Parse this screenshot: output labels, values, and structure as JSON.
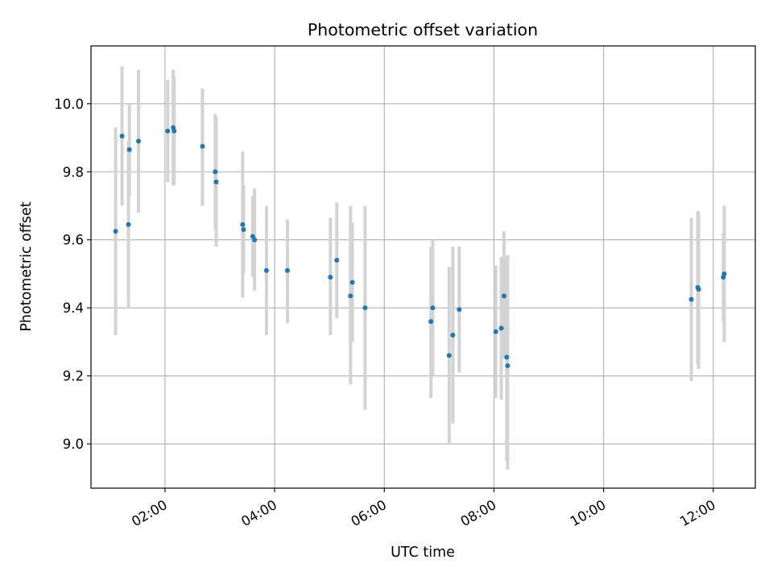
{
  "chart_data": {
    "type": "scatter",
    "title": "Photometric offset variation",
    "xlabel": "UTC time",
    "ylabel": "Photometric offset",
    "x_tick_labels": [
      "02:00",
      "04:00",
      "06:00",
      "08:00",
      "10:00",
      "12:00"
    ],
    "y_tick_labels": [
      "9.0",
      "9.2",
      "9.4",
      "9.6",
      "9.8",
      "10.0"
    ],
    "x_ticks": [
      "02:00",
      "04:00",
      "06:00",
      "08:00",
      "10:00",
      "12:00"
    ],
    "y_ticks": [
      9.0,
      9.2,
      9.4,
      9.6,
      9.8,
      10.0
    ],
    "xlim": [
      "00:39",
      "12:46"
    ],
    "ylim": [
      8.87,
      10.17
    ],
    "grid": true,
    "colors": {
      "points": "#1f77b4",
      "errorbars": "#d3d3d3",
      "grid": "#b0b0b0"
    },
    "points": [
      {
        "time": "01:06",
        "y": 9.625,
        "lo": 9.32,
        "hi": 9.93
      },
      {
        "time": "01:13",
        "y": 9.905,
        "lo": 9.7,
        "hi": 10.11
      },
      {
        "time": "01:20",
        "y": 9.645,
        "lo": 9.4,
        "hi": 9.89
      },
      {
        "time": "01:21",
        "y": 9.865,
        "lo": 9.73,
        "hi": 10.0
      },
      {
        "time": "01:31",
        "y": 9.89,
        "lo": 9.68,
        "hi": 10.1
      },
      {
        "time": "02:03",
        "y": 9.92,
        "lo": 9.77,
        "hi": 10.07
      },
      {
        "time": "02:09",
        "y": 9.93,
        "lo": 9.76,
        "hi": 10.1
      },
      {
        "time": "02:10",
        "y": 9.92,
        "lo": 9.76,
        "hi": 10.08
      },
      {
        "time": "02:41",
        "y": 9.875,
        "lo": 9.7,
        "hi": 10.045
      },
      {
        "time": "02:55",
        "y": 9.8,
        "lo": 9.63,
        "hi": 9.97
      },
      {
        "time": "02:56",
        "y": 9.77,
        "lo": 9.58,
        "hi": 9.96
      },
      {
        "time": "03:25",
        "y": 9.645,
        "lo": 9.43,
        "hi": 9.86
      },
      {
        "time": "03:26",
        "y": 9.63,
        "lo": 9.5,
        "hi": 9.76
      },
      {
        "time": "03:36",
        "y": 9.61,
        "lo": 9.49,
        "hi": 9.73
      },
      {
        "time": "03:38",
        "y": 9.6,
        "lo": 9.45,
        "hi": 9.75
      },
      {
        "time": "03:51",
        "y": 9.51,
        "lo": 9.32,
        "hi": 9.7
      },
      {
        "time": "04:14",
        "y": 9.51,
        "lo": 9.355,
        "hi": 9.66
      },
      {
        "time": "05:01",
        "y": 9.49,
        "lo": 9.32,
        "hi": 9.665
      },
      {
        "time": "05:08",
        "y": 9.54,
        "lo": 9.37,
        "hi": 9.71
      },
      {
        "time": "05:23",
        "y": 9.435,
        "lo": 9.175,
        "hi": 9.7
      },
      {
        "time": "05:25",
        "y": 9.475,
        "lo": 9.3,
        "hi": 9.65
      },
      {
        "time": "05:39",
        "y": 9.4,
        "lo": 9.1,
        "hi": 9.7
      },
      {
        "time": "06:51",
        "y": 9.36,
        "lo": 9.135,
        "hi": 9.58
      },
      {
        "time": "06:53",
        "y": 9.4,
        "lo": 9.2,
        "hi": 9.6
      },
      {
        "time": "07:11",
        "y": 9.26,
        "lo": 9.0,
        "hi": 9.52
      },
      {
        "time": "07:15",
        "y": 9.32,
        "lo": 9.06,
        "hi": 9.58
      },
      {
        "time": "07:22",
        "y": 9.395,
        "lo": 9.21,
        "hi": 9.58
      },
      {
        "time": "08:02",
        "y": 9.33,
        "lo": 9.135,
        "hi": 9.525
      },
      {
        "time": "08:08",
        "y": 9.34,
        "lo": 9.13,
        "hi": 9.55
      },
      {
        "time": "08:11",
        "y": 9.435,
        "lo": 9.25,
        "hi": 9.625
      },
      {
        "time": "08:14",
        "y": 9.255,
        "lo": 8.95,
        "hi": 9.55
      },
      {
        "time": "08:15",
        "y": 9.23,
        "lo": 8.925,
        "hi": 9.555
      },
      {
        "time": "11:36",
        "y": 9.425,
        "lo": 9.185,
        "hi": 9.665
      },
      {
        "time": "11:43",
        "y": 9.46,
        "lo": 9.235,
        "hi": 9.685
      },
      {
        "time": "11:44",
        "y": 9.455,
        "lo": 9.22,
        "hi": 9.68
      },
      {
        "time": "12:11",
        "y": 9.49,
        "lo": 9.36,
        "hi": 9.62
      },
      {
        "time": "12:12",
        "y": 9.5,
        "lo": 9.3,
        "hi": 9.7
      }
    ]
  }
}
